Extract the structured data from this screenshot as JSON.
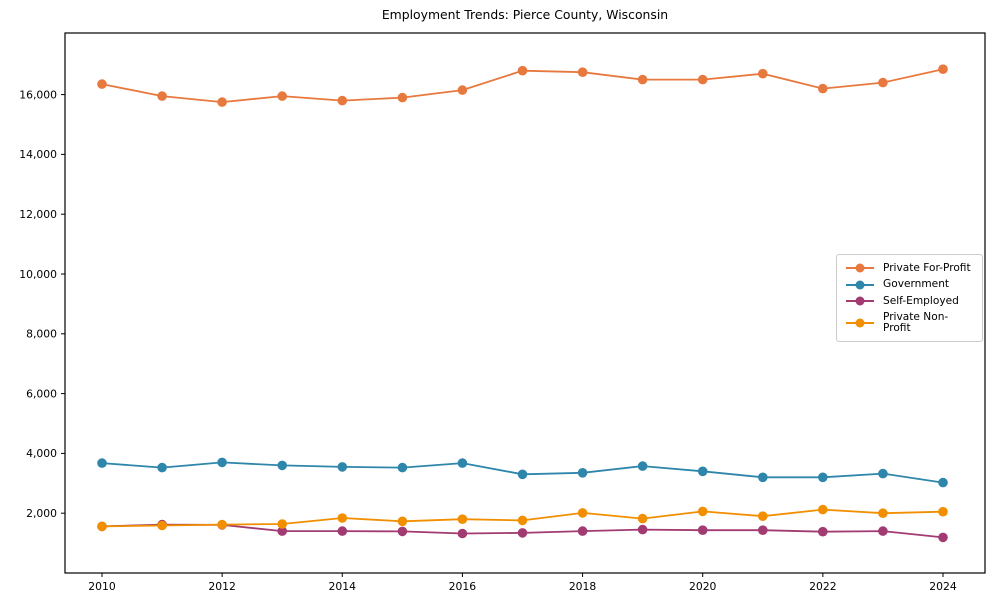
{
  "chart_data": {
    "type": "line",
    "title": "Employment Trends: Pierce County, Wisconsin",
    "xlabel": "",
    "ylabel": "",
    "grid": false,
    "legend_position": "center right",
    "x": [
      2010,
      2011,
      2012,
      2013,
      2014,
      2015,
      2016,
      2017,
      2018,
      2019,
      2020,
      2021,
      2022,
      2023,
      2024
    ],
    "x_ticks": [
      2010,
      2012,
      2014,
      2016,
      2018,
      2020,
      2022,
      2024
    ],
    "x_tick_labels": [
      "2010",
      "2012",
      "2014",
      "2016",
      "2018",
      "2020",
      "2022",
      "2024"
    ],
    "y_ticks": [
      2000,
      4000,
      6000,
      8000,
      10000,
      12000,
      14000,
      16000
    ],
    "y_tick_labels": [
      "2,000",
      "4,000",
      "6,000",
      "8,000",
      "10,000",
      "12,000",
      "14,000",
      "16,000"
    ],
    "ylim": [
      0,
      18060
    ],
    "series": [
      {
        "name": "Private For-Profit",
        "color": "#E8793E",
        "values": [
          16350,
          15950,
          15750,
          15950,
          15800,
          15900,
          16150,
          16800,
          16750,
          16500,
          16500,
          16700,
          16200,
          16400,
          16850
        ]
      },
      {
        "name": "Government",
        "color": "#2E86AB",
        "values": [
          3675,
          3525,
          3700,
          3600,
          3550,
          3525,
          3675,
          3300,
          3350,
          3575,
          3400,
          3200,
          3200,
          3325,
          3025
        ]
      },
      {
        "name": "Self-Employed",
        "color": "#A23B72",
        "values": [
          1560,
          1620,
          1610,
          1400,
          1400,
          1390,
          1320,
          1340,
          1400,
          1450,
          1430,
          1430,
          1380,
          1400,
          1190
        ]
      },
      {
        "name": "Private Non-Profit",
        "color": "#F18F01",
        "values": [
          1560,
          1590,
          1620,
          1640,
          1840,
          1730,
          1800,
          1760,
          2010,
          1820,
          2060,
          1900,
          2120,
          2000,
          2050
        ]
      }
    ]
  }
}
